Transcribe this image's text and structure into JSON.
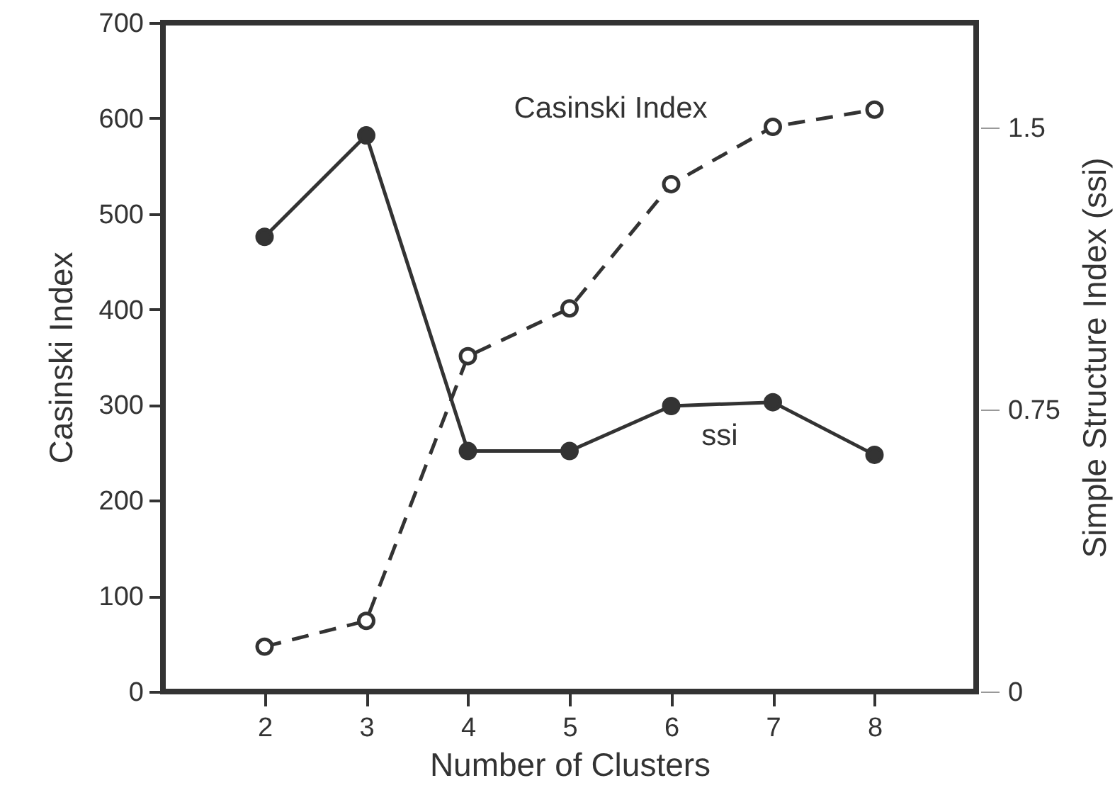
{
  "chart_data": {
    "type": "line",
    "xlabel": "Number of Clusters",
    "ylabel": "Casinski Index",
    "y2label": "Simple Structure Index (ssi)",
    "x": [
      2,
      3,
      4,
      5,
      6,
      7,
      8
    ],
    "xlim": [
      1,
      9
    ],
    "xticks": [
      2,
      3,
      4,
      5,
      6,
      7,
      8
    ],
    "ylim": [
      0,
      700
    ],
    "yticks": [
      0,
      100,
      200,
      300,
      400,
      500,
      600,
      700
    ],
    "y2lim": [
      0,
      1.78
    ],
    "y2ticks": [
      0,
      0.75,
      1.5
    ],
    "marker": "circle",
    "grid": false,
    "series": [
      {
        "color": "#333333",
        "line_style": "dashed",
        "values": [
          47,
          74,
          351,
          401,
          531,
          591,
          609
        ]
      },
      {
        "color": "#333333",
        "line_style": "solid",
        "axis": "y2",
        "values": [
          1.21,
          1.48,
          0.64,
          0.64,
          0.76,
          0.77,
          0.63
        ]
      }
    ],
    "annotations": [
      "Casinski Index",
      "ssi"
    ]
  }
}
